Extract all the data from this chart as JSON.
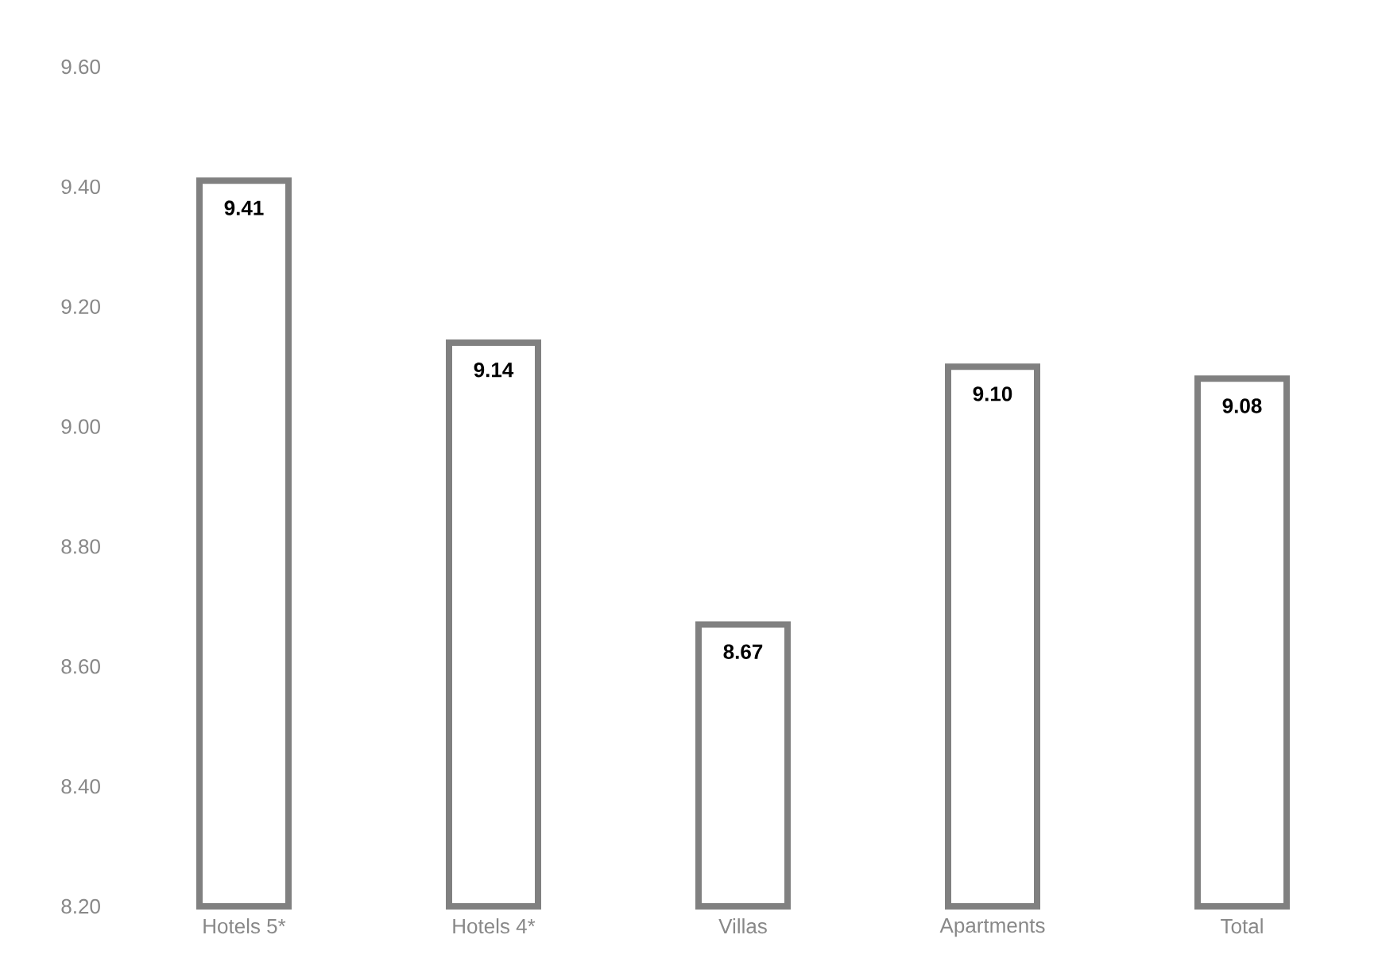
{
  "chart_data": {
    "type": "bar",
    "categories": [
      "Hotels 5*",
      "Hotels 4*",
      "Villas",
      "Apartments",
      "Total"
    ],
    "values": [
      9.41,
      9.14,
      8.67,
      9.1,
      9.08
    ],
    "value_labels": [
      "9.41",
      "9.14",
      "8.67",
      "9.10",
      "9.08"
    ],
    "color": "#808080",
    "ylim": [
      8.2,
      9.6
    ],
    "yticks": [
      {
        "value": 8.2,
        "label": "8.20"
      },
      {
        "value": 8.4,
        "label": "8.40"
      },
      {
        "value": 8.6,
        "label": "8.60"
      },
      {
        "value": 8.8,
        "label": "8.80"
      },
      {
        "value": 9.0,
        "label": "9.00"
      },
      {
        "value": 9.2,
        "label": "9.20"
      },
      {
        "value": 9.4,
        "label": "9.40"
      },
      {
        "value": 9.6,
        "label": "9.60"
      }
    ]
  }
}
